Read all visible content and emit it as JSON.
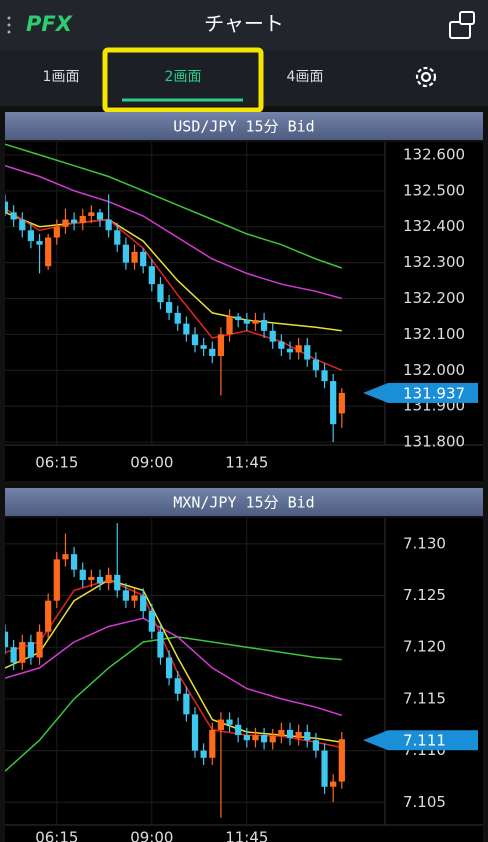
{
  "header": {
    "logo": "PFX",
    "title": "チャート"
  },
  "tabs": [
    "1画面",
    "2画面",
    "4画面"
  ],
  "selected_tab": 1,
  "chart_data": [
    {
      "type": "candlestick",
      "title": "USD/JPY 15分 Bid",
      "up_color": "#ff6a1a",
      "down_color": "#3ec8f0",
      "open": [
        132.47,
        132.44,
        132.42,
        132.39,
        132.36,
        132.29,
        132.37,
        132.4,
        132.42,
        132.41,
        132.43,
        132.44,
        132.42,
        132.39,
        132.35,
        132.3,
        132.33,
        132.29,
        132.24,
        132.19,
        132.16,
        132.13,
        132.1,
        132.07,
        132.06,
        132.04,
        132.1,
        132.15,
        132.14,
        132.13,
        132.14,
        132.11,
        132.08,
        132.06,
        132.05,
        132.07,
        132.03,
        132.0,
        131.97,
        131.88
      ],
      "high": [
        132.49,
        132.46,
        132.44,
        132.41,
        132.38,
        132.38,
        132.42,
        132.45,
        132.44,
        132.45,
        132.46,
        132.45,
        132.49,
        132.41,
        132.37,
        132.35,
        132.34,
        132.31,
        132.26,
        132.21,
        132.18,
        132.15,
        132.12,
        132.09,
        132.08,
        132.12,
        132.17,
        132.16,
        132.16,
        132.16,
        132.16,
        132.13,
        132.1,
        132.08,
        132.09,
        132.09,
        132.05,
        132.02,
        131.99,
        131.95
      ],
      "low": [
        132.43,
        132.4,
        132.37,
        132.34,
        132.27,
        132.28,
        132.35,
        132.38,
        132.39,
        132.39,
        132.41,
        132.4,
        132.37,
        132.33,
        132.28,
        132.28,
        132.27,
        132.22,
        132.17,
        132.14,
        132.11,
        132.08,
        132.05,
        132.04,
        132.02,
        131.93,
        132.08,
        132.12,
        132.11,
        132.11,
        132.09,
        132.06,
        132.04,
        132.03,
        132.03,
        132.01,
        131.98,
        131.95,
        131.8,
        131.84
      ],
      "close": [
        132.44,
        132.42,
        132.39,
        132.36,
        132.35,
        132.37,
        132.4,
        132.42,
        132.41,
        132.43,
        132.44,
        132.42,
        132.39,
        132.35,
        132.3,
        132.33,
        132.29,
        132.24,
        132.19,
        132.16,
        132.13,
        132.1,
        132.07,
        132.06,
        132.04,
        132.1,
        132.15,
        132.14,
        132.13,
        132.14,
        132.11,
        132.08,
        132.06,
        132.05,
        132.07,
        132.03,
        132.0,
        131.97,
        131.85,
        131.937
      ],
      "ma_x": [
        0,
        4,
        8,
        12,
        16,
        20,
        24,
        28,
        32,
        36,
        39
      ],
      "series": [
        {
          "color": "#3cc43c",
          "values": [
            132.63,
            132.6,
            132.57,
            132.54,
            132.5,
            132.46,
            132.42,
            132.38,
            132.35,
            132.31,
            132.285
          ]
        },
        {
          "color": "#d33ad3",
          "values": [
            132.57,
            132.54,
            132.5,
            132.47,
            132.43,
            132.37,
            132.31,
            132.27,
            132.24,
            132.22,
            132.2
          ]
        },
        {
          "color": "#e8e030",
          "values": [
            132.44,
            132.4,
            132.41,
            132.42,
            132.36,
            132.25,
            132.16,
            132.14,
            132.13,
            132.12,
            132.11
          ]
        },
        {
          "color": "#e42222",
          "values": [
            132.45,
            132.39,
            132.41,
            132.42,
            132.34,
            132.21,
            132.09,
            132.11,
            132.08,
            132.03,
            132.0
          ]
        }
      ],
      "current": 131.937,
      "xlim": [
        0,
        44
      ],
      "xticks": [
        {
          "value": 6,
          "label": "06:15"
        },
        {
          "value": 17,
          "label": "09:00"
        },
        {
          "value": 28,
          "label": "11:45"
        }
      ],
      "ylim": [
        131.792,
        132.636
      ],
      "yticks": [
        {
          "value": 132.6,
          "label": "132.600"
        },
        {
          "value": 132.5,
          "label": "132.500"
        },
        {
          "value": 132.4,
          "label": "132.400"
        },
        {
          "value": 132.3,
          "label": "132.300"
        },
        {
          "value": 132.2,
          "label": "132.200"
        },
        {
          "value": 132.1,
          "label": "132.100"
        },
        {
          "value": 132.0,
          "label": "132.000"
        },
        {
          "value": 131.9,
          "label": "131.900"
        },
        {
          "value": 131.8,
          "label": "131.800"
        }
      ]
    },
    {
      "type": "candlestick",
      "title": "MXN/JPY 15分 Bid",
      "up_color": "#ff6a1a",
      "down_color": "#3ec8f0",
      "open": [
        7.1215,
        7.12,
        7.1185,
        7.1205,
        7.119,
        7.1215,
        7.1245,
        7.1285,
        7.129,
        7.1275,
        7.1265,
        7.1268,
        7.1262,
        7.127,
        7.1255,
        7.1245,
        7.125,
        7.1235,
        7.1215,
        7.119,
        7.117,
        7.1155,
        7.1135,
        7.11,
        7.1093,
        7.112,
        7.113,
        7.1125,
        7.1115,
        7.111,
        7.1115,
        7.1108,
        7.1114,
        7.112,
        7.1112,
        7.1118,
        7.111,
        7.11,
        7.1065,
        7.107
      ],
      "high": [
        7.1222,
        7.1207,
        7.1212,
        7.1212,
        7.1222,
        7.1252,
        7.1292,
        7.131,
        7.1297,
        7.1282,
        7.1275,
        7.1275,
        7.1277,
        7.132,
        7.1262,
        7.1257,
        7.1257,
        7.1242,
        7.1222,
        7.1197,
        7.1177,
        7.1162,
        7.1142,
        7.1107,
        7.1127,
        7.1137,
        7.1137,
        7.1132,
        7.1122,
        7.1122,
        7.1122,
        7.1121,
        7.1127,
        7.1127,
        7.1125,
        7.1125,
        7.1117,
        7.1107,
        7.1077,
        7.1118
      ],
      "low": [
        7.1193,
        7.1178,
        7.1178,
        7.1183,
        7.1183,
        7.1208,
        7.1238,
        7.1278,
        7.1268,
        7.1258,
        7.1258,
        7.1255,
        7.1255,
        7.1248,
        7.1238,
        7.1238,
        7.1228,
        7.1208,
        7.1183,
        7.1163,
        7.1148,
        7.1128,
        7.1093,
        7.1086,
        7.1086,
        7.1035,
        7.1118,
        7.1108,
        7.1103,
        7.1103,
        7.1101,
        7.1101,
        7.1107,
        7.1105,
        7.1105,
        7.1103,
        7.1093,
        7.1058,
        7.105,
        7.1063
      ],
      "close": [
        7.12,
        7.1185,
        7.1205,
        7.119,
        7.1215,
        7.1245,
        7.1285,
        7.129,
        7.1275,
        7.1265,
        7.1268,
        7.1262,
        7.127,
        7.1255,
        7.1245,
        7.125,
        7.1235,
        7.1215,
        7.119,
        7.117,
        7.1155,
        7.1135,
        7.11,
        7.1093,
        7.112,
        7.113,
        7.1125,
        7.1115,
        7.111,
        7.1115,
        7.1108,
        7.1114,
        7.112,
        7.1112,
        7.1118,
        7.111,
        7.11,
        7.1065,
        7.107,
        7.1111
      ],
      "ma_x": [
        0,
        4,
        8,
        12,
        16,
        20,
        24,
        28,
        32,
        36,
        39
      ],
      "series": [
        {
          "color": "#3cc43c",
          "values": [
            7.108,
            7.111,
            7.115,
            7.118,
            7.1205,
            7.121,
            7.1205,
            7.12,
            7.1195,
            7.119,
            7.1188
          ]
        },
        {
          "color": "#d33ad3",
          "values": [
            7.117,
            7.118,
            7.1205,
            7.122,
            7.1228,
            7.121,
            7.118,
            7.116,
            7.115,
            7.1142,
            7.1134
          ]
        },
        {
          "color": "#e8e030",
          "values": [
            7.118,
            7.1195,
            7.1245,
            7.1265,
            7.1255,
            7.119,
            7.113,
            7.1118,
            7.1115,
            7.1112,
            7.1108
          ]
        },
        {
          "color": "#e42222",
          "values": [
            7.1195,
            7.1205,
            7.1255,
            7.1265,
            7.125,
            7.1175,
            7.112,
            7.1115,
            7.1114,
            7.1108,
            7.1103
          ]
        }
      ],
      "current": 7.111,
      "xlim": [
        0,
        44
      ],
      "xticks": [
        {
          "value": 6,
          "label": "06:15"
        },
        {
          "value": 17,
          "label": "09:00"
        },
        {
          "value": 28,
          "label": "11:45"
        }
      ],
      "ylim": [
        7.1028,
        7.1325
      ],
      "yticks": [
        {
          "value": 7.13,
          "label": "7.130"
        },
        7.125,
        {
          "value": 7.12,
          "label": "7.120"
        },
        7.115,
        {
          "value": 7.11,
          "label": "7.110"
        },
        7.105
      ]
    }
  ]
}
